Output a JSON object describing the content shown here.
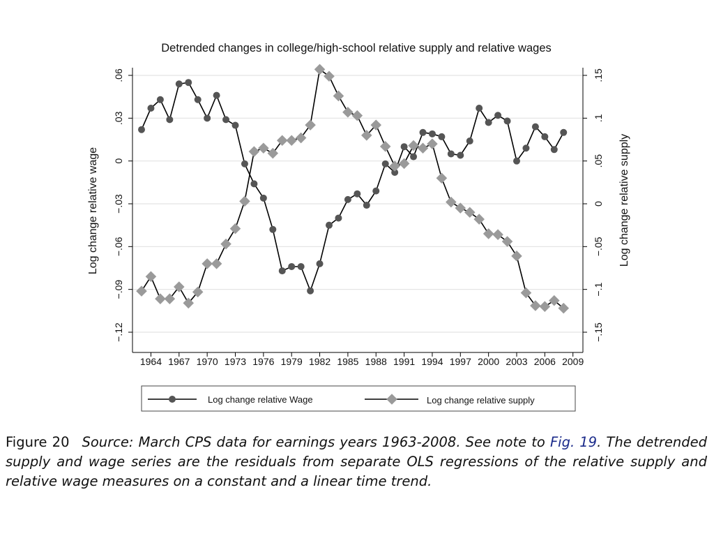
{
  "chart_data": {
    "type": "line",
    "title": "Detrended changes in college/high-school relative supply and relative wages",
    "ylabel_left": "Log change relative wage",
    "ylabel_right": "Log change relative supply",
    "ylim_left": [
      -0.12,
      0.06
    ],
    "ylim_right": [
      -0.15,
      0.15
    ],
    "xlim": [
      1962,
      2009
    ],
    "yticks_left": [
      {
        "value": 0.06,
        "label": ".06"
      },
      {
        "value": 0.03,
        "label": ".03"
      },
      {
        "value": 0,
        "label": "0"
      },
      {
        "value": -0.03,
        "label": "−.03"
      },
      {
        "value": -0.06,
        "label": "−.06"
      },
      {
        "value": -0.09,
        "label": "−.09"
      },
      {
        "value": -0.12,
        "label": "−.12"
      }
    ],
    "yticks_right": [
      {
        "value": 0.15,
        "label": ".15"
      },
      {
        "value": 0.1,
        "label": ".1"
      },
      {
        "value": 0.05,
        "label": ".05"
      },
      {
        "value": 0,
        "label": "0"
      },
      {
        "value": -0.05,
        "label": "−.05"
      },
      {
        "value": -0.1,
        "label": "−.1"
      },
      {
        "value": -0.15,
        "label": "−.15"
      }
    ],
    "xticks": [
      1964,
      1967,
      1970,
      1973,
      1976,
      1979,
      1982,
      1985,
      1988,
      1991,
      1994,
      1997,
      2000,
      2003,
      2006,
      2009
    ],
    "grid": true,
    "legend_position": "bottom",
    "series": [
      {
        "name": "Log change relative Wage",
        "axis": "left",
        "marker": "circle",
        "x": [
          1963,
          1964,
          1965,
          1966,
          1967,
          1968,
          1969,
          1970,
          1971,
          1972,
          1973,
          1974,
          1975,
          1976,
          1977,
          1978,
          1979,
          1980,
          1981,
          1982,
          1983,
          1984,
          1985,
          1986,
          1987,
          1988,
          1989,
          1990,
          1991,
          1992,
          1993,
          1994,
          1995,
          1996,
          1997,
          1998,
          1999,
          2000,
          2001,
          2002,
          2003,
          2004,
          2005,
          2006,
          2007,
          2008
        ],
        "values": [
          0.022,
          0.037,
          0.043,
          0.029,
          0.054,
          0.055,
          0.043,
          0.03,
          0.046,
          0.029,
          0.025,
          -0.002,
          -0.016,
          -0.026,
          -0.048,
          -0.077,
          -0.074,
          -0.074,
          -0.091,
          -0.072,
          -0.045,
          -0.04,
          -0.027,
          -0.023,
          -0.031,
          -0.021,
          -0.002,
          -0.008,
          0.01,
          0.003,
          0.02,
          0.019,
          0.017,
          0.005,
          0.004,
          0.014,
          0.037,
          0.027,
          0.032,
          0.028,
          0.0,
          0.009,
          0.024,
          0.017,
          0.008,
          0.02
        ]
      },
      {
        "name": "Log change relative supply",
        "axis": "right",
        "marker": "diamond",
        "x": [
          1963,
          1964,
          1965,
          1966,
          1967,
          1968,
          1969,
          1970,
          1971,
          1972,
          1973,
          1974,
          1975,
          1976,
          1977,
          1978,
          1979,
          1980,
          1981,
          1982,
          1983,
          1984,
          1985,
          1986,
          1987,
          1988,
          1989,
          1990,
          1991,
          1992,
          1993,
          1994,
          1995,
          1996,
          1997,
          1998,
          1999,
          2000,
          2001,
          2002,
          2003,
          2004,
          2005,
          2006,
          2007,
          2008
        ],
        "values": [
          -0.102,
          -0.085,
          -0.111,
          -0.111,
          -0.097,
          -0.116,
          -0.103,
          -0.07,
          -0.07,
          -0.047,
          -0.029,
          0.003,
          0.061,
          0.065,
          0.059,
          0.074,
          0.074,
          0.077,
          0.092,
          0.157,
          0.149,
          0.126,
          0.107,
          0.103,
          0.08,
          0.092,
          0.067,
          0.044,
          0.047,
          0.068,
          0.065,
          0.07,
          0.03,
          0.002,
          -0.005,
          -0.01,
          -0.018,
          -0.035,
          -0.036,
          -0.044,
          -0.061,
          -0.104,
          -0.119,
          -0.12,
          -0.113,
          -0.122
        ]
      }
    ]
  },
  "caption": {
    "label": "Figure 20",
    "text_before_link": "Source: March CPS data for earnings years 1963-2008. See note to ",
    "link": "Fig. 19",
    "text_after_link": ". The detrended supply and wage series are the residuals from separate OLS regressions of the relative supply and relative wage measures on a constant and a linear time trend."
  },
  "colors": {
    "wage_marker": "#555555",
    "supply_marker": "#9a9a9a",
    "line": "#000000",
    "grid": "#e3e3e3",
    "link": "#1a2a8a"
  }
}
